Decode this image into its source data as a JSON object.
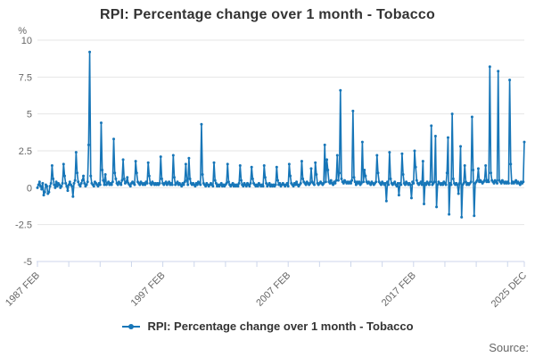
{
  "title": "RPI: Percentage change over 1 month - Tobacco",
  "legend": {
    "label": "RPI: Percentage change over 1 month - Tobacco"
  },
  "source_label": "Source:",
  "colors": {
    "series": "#1776b8",
    "grid": "#e6e6e6",
    "axis_line": "#ccd6eb",
    "tick_label": "#666666",
    "title_text": "#333333"
  },
  "y_axis": {
    "unit": "%",
    "min": -5,
    "max": 10,
    "tick_values": [
      10,
      7.5,
      5,
      2.5,
      0,
      -2.5,
      -5
    ],
    "tick_labels": [
      "10",
      "7.5",
      "5",
      "2.5",
      "0",
      "-2.5",
      "-5"
    ]
  },
  "x_axis": {
    "start": "1987 FEB",
    "end": "2025 DEC",
    "minor_tick_interval_months": 30,
    "labeled_ticks": [
      {
        "label": "1987 FEB",
        "month_index": 0
      },
      {
        "label": "1997 FEB",
        "month_index": 120
      },
      {
        "label": "2007 FEB",
        "month_index": 240
      },
      {
        "label": "2017 FEB",
        "month_index": 360
      },
      {
        "label": "2025 DEC",
        "month_index": 466
      }
    ]
  },
  "chart_data": {
    "type": "line",
    "title": "RPI: Percentage change over 1 month - Tobacco",
    "xlabel": "",
    "ylabel": "%",
    "ylim": [
      -5,
      10
    ],
    "grid": true,
    "legend_position": "bottom",
    "frequency": "monthly",
    "x_start": "1987 FEB",
    "x_end": "2025 DEC",
    "notable_points": {
      "1991 APR": 9.2,
      "1992 MAR": 4.4,
      "2000 MAR": 4.3,
      "2011 APR": 6.6,
      "2012 APR": 5.2,
      "2020 MAR": 5.0,
      "2023 MAR": 8.2,
      "2023 NOV": 7.9,
      "2024 OCT": 7.3,
      "2020 DEC": -2.0,
      "2025 DEC": 3.1
    },
    "values": [
      0.0,
      0.2,
      0.4,
      0.1,
      -0.1,
      0.3,
      -0.5,
      -0.3,
      0.2,
      0.1,
      -0.4,
      -0.3,
      0.1,
      0.3,
      1.5,
      0.6,
      0.2,
      0.0,
      0.4,
      0.1,
      0.3,
      0.2,
      0.0,
      0.1,
      0.3,
      1.6,
      0.8,
      0.3,
      0.1,
      -0.2,
      0.2,
      0.4,
      0.2,
      0.1,
      -0.6,
      0.3,
      0.5,
      2.4,
      1.0,
      0.4,
      0.2,
      0.1,
      0.3,
      0.5,
      0.8,
      0.3,
      0.1,
      0.2,
      0.4,
      2.9,
      9.2,
      0.8,
      0.3,
      0.2,
      0.1,
      0.4,
      0.3,
      0.2,
      0.1,
      0.3,
      0.2,
      4.4,
      1.2,
      0.5,
      0.2,
      0.9,
      0.2,
      0.3,
      0.4,
      0.2,
      0.3,
      0.2,
      0.4,
      3.3,
      1.0,
      0.6,
      0.3,
      0.2,
      0.4,
      0.3,
      0.2,
      0.5,
      1.9,
      0.6,
      0.3,
      0.4,
      0.7,
      0.3,
      0.2,
      0.1,
      0.3,
      0.4,
      0.3,
      0.2,
      1.8,
      1.0,
      0.4,
      0.3,
      0.2,
      0.4,
      0.3,
      0.2,
      0.3,
      0.2,
      0.4,
      0.3,
      1.7,
      0.8,
      0.3,
      0.2,
      0.4,
      0.3,
      0.2,
      0.3,
      0.2,
      0.3,
      0.2,
      0.3,
      2.1,
      0.6,
      0.3,
      0.2,
      0.3,
      0.4,
      0.2,
      0.3,
      0.4,
      0.2,
      0.3,
      0.2,
      2.2,
      0.7,
      0.2,
      0.3,
      0.4,
      0.2,
      0.3,
      0.2,
      0.1,
      0.3,
      0.2,
      0.4,
      1.6,
      0.5,
      0.2,
      2.0,
      0.6,
      0.3,
      0.2,
      0.3,
      0.2,
      0.1,
      0.3,
      0.2,
      0.4,
      0.3,
      0.2,
      4.3,
      0.9,
      0.3,
      0.2,
      0.1,
      0.3,
      0.2,
      0.1,
      0.2,
      0.3,
      0.2,
      0.1,
      1.7,
      0.5,
      0.3,
      0.1,
      0.2,
      0.1,
      0.2,
      0.3,
      0.1,
      0.2,
      0.1,
      0.2,
      0.3,
      1.6,
      0.4,
      0.2,
      0.1,
      0.2,
      0.3,
      0.1,
      0.2,
      0.1,
      0.2,
      0.1,
      0.3,
      1.5,
      0.5,
      0.2,
      0.1,
      0.3,
      0.2,
      0.1,
      0.3,
      0.2,
      0.1,
      0.3,
      1.4,
      0.6,
      0.3,
      0.2,
      0.1,
      0.2,
      0.1,
      0.3,
      0.2,
      0.1,
      0.2,
      0.1,
      1.5,
      0.7,
      0.3,
      0.1,
      0.2,
      0.3,
      0.1,
      0.2,
      0.1,
      0.2,
      0.1,
      0.2,
      1.4,
      0.5,
      0.2,
      0.3,
      0.1,
      0.2,
      0.3,
      0.2,
      0.1,
      0.2,
      0.3,
      0.1,
      1.6,
      0.8,
      0.3,
      0.2,
      0.1,
      0.3,
      0.2,
      0.4,
      0.2,
      0.1,
      0.2,
      0.3,
      1.8,
      0.6,
      0.4,
      0.3,
      0.2,
      0.4,
      0.3,
      0.2,
      0.3,
      1.3,
      0.4,
      0.3,
      0.2,
      1.7,
      0.9,
      0.3,
      0.2,
      0.3,
      0.4,
      0.3,
      0.2,
      0.3,
      2.9,
      0.4,
      1.9,
      1.2,
      0.4,
      0.3,
      0.5,
      0.3,
      0.2,
      0.4,
      0.3,
      0.5,
      2.2,
      0.5,
      1.0,
      6.6,
      0.6,
      0.4,
      0.3,
      0.5,
      0.4,
      0.3,
      0.4,
      0.3,
      0.4,
      0.3,
      0.5,
      5.2,
      0.7,
      0.4,
      0.2,
      0.4,
      0.3,
      0.4,
      0.2,
      0.3,
      3.1,
      0.4,
      1.2,
      0.8,
      0.4,
      0.3,
      0.4,
      0.3,
      0.2,
      0.4,
      0.3,
      0.2,
      0.3,
      0.4,
      2.2,
      1.0,
      0.4,
      0.3,
      0.2,
      0.4,
      0.3,
      0.2,
      0.3,
      -0.9,
      0.4,
      0.2,
      2.4,
      0.6,
      0.3,
      0.2,
      0.3,
      0.4,
      0.2,
      0.1,
      0.3,
      -0.5,
      0.3,
      0.2,
      2.3,
      0.9,
      0.3,
      0.2,
      0.4,
      0.3,
      0.2,
      0.3,
      0.2,
      -0.7,
      0.4,
      0.3,
      2.5,
      1.4,
      0.5,
      0.3,
      0.2,
      0.3,
      0.4,
      0.2,
      1.8,
      -1.1,
      0.3,
      0.2,
      0.4,
      0.3,
      0.2,
      0.4,
      4.2,
      0.2,
      0.3,
      0.4,
      3.5,
      -1.3,
      0.2,
      0.4,
      0.3,
      0.2,
      0.3,
      0.2,
      0.4,
      0.3,
      0.2,
      1.0,
      3.4,
      -1.8,
      0.3,
      0.2,
      5.0,
      0.6,
      0.3,
      0.2,
      0.3,
      0.2,
      -0.4,
      0.3,
      2.8,
      -2.0,
      0.2,
      0.3,
      1.5,
      0.4,
      0.2,
      0.3,
      0.2,
      0.3,
      0.4,
      4.8,
      1.2,
      -1.9,
      0.3,
      0.4,
      0.5,
      1.3,
      0.4,
      0.5,
      0.4,
      0.3,
      0.4,
      0.5,
      1.5,
      0.4,
      0.5,
      0.4,
      8.2,
      1.0,
      0.5,
      0.4,
      0.3,
      0.5,
      0.4,
      0.3,
      7.9,
      0.5,
      0.4,
      0.3,
      0.5,
      0.4,
      0.3,
      0.4,
      0.3,
      0.4,
      0.3,
      7.3,
      1.6,
      0.3,
      0.4,
      0.3,
      0.4,
      0.5,
      0.3,
      0.4,
      0.3,
      0.2,
      0.4,
      0.3,
      0.4,
      3.1
    ]
  }
}
